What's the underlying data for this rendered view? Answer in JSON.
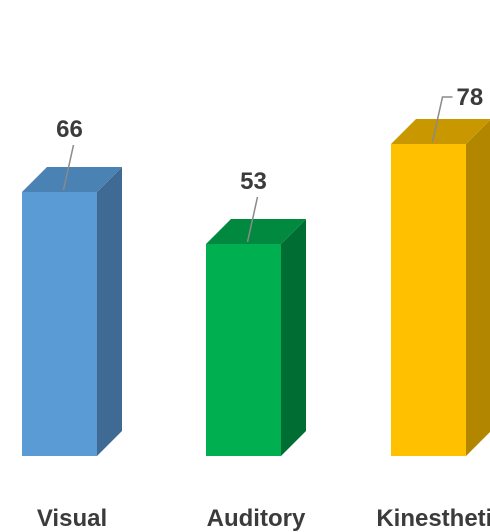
{
  "chart_data": {
    "type": "bar",
    "style": "3d",
    "categories": [
      "Visual",
      "Auditory",
      "Kinesthetic"
    ],
    "values": [
      66,
      53,
      78
    ],
    "data_labels": [
      "66",
      "53",
      "78"
    ],
    "title": "",
    "xlabel": "",
    "ylabel": "",
    "ylim": [
      0,
      90
    ],
    "grid": false,
    "legend": "none",
    "colors": {
      "front": [
        "#5b9bd5",
        "#00b050",
        "#ffc000"
      ],
      "top": [
        "#4a82b4",
        "#00893f",
        "#c99700"
      ],
      "side": [
        "#3e6a93",
        "#006e32",
        "#b38600"
      ]
    }
  }
}
